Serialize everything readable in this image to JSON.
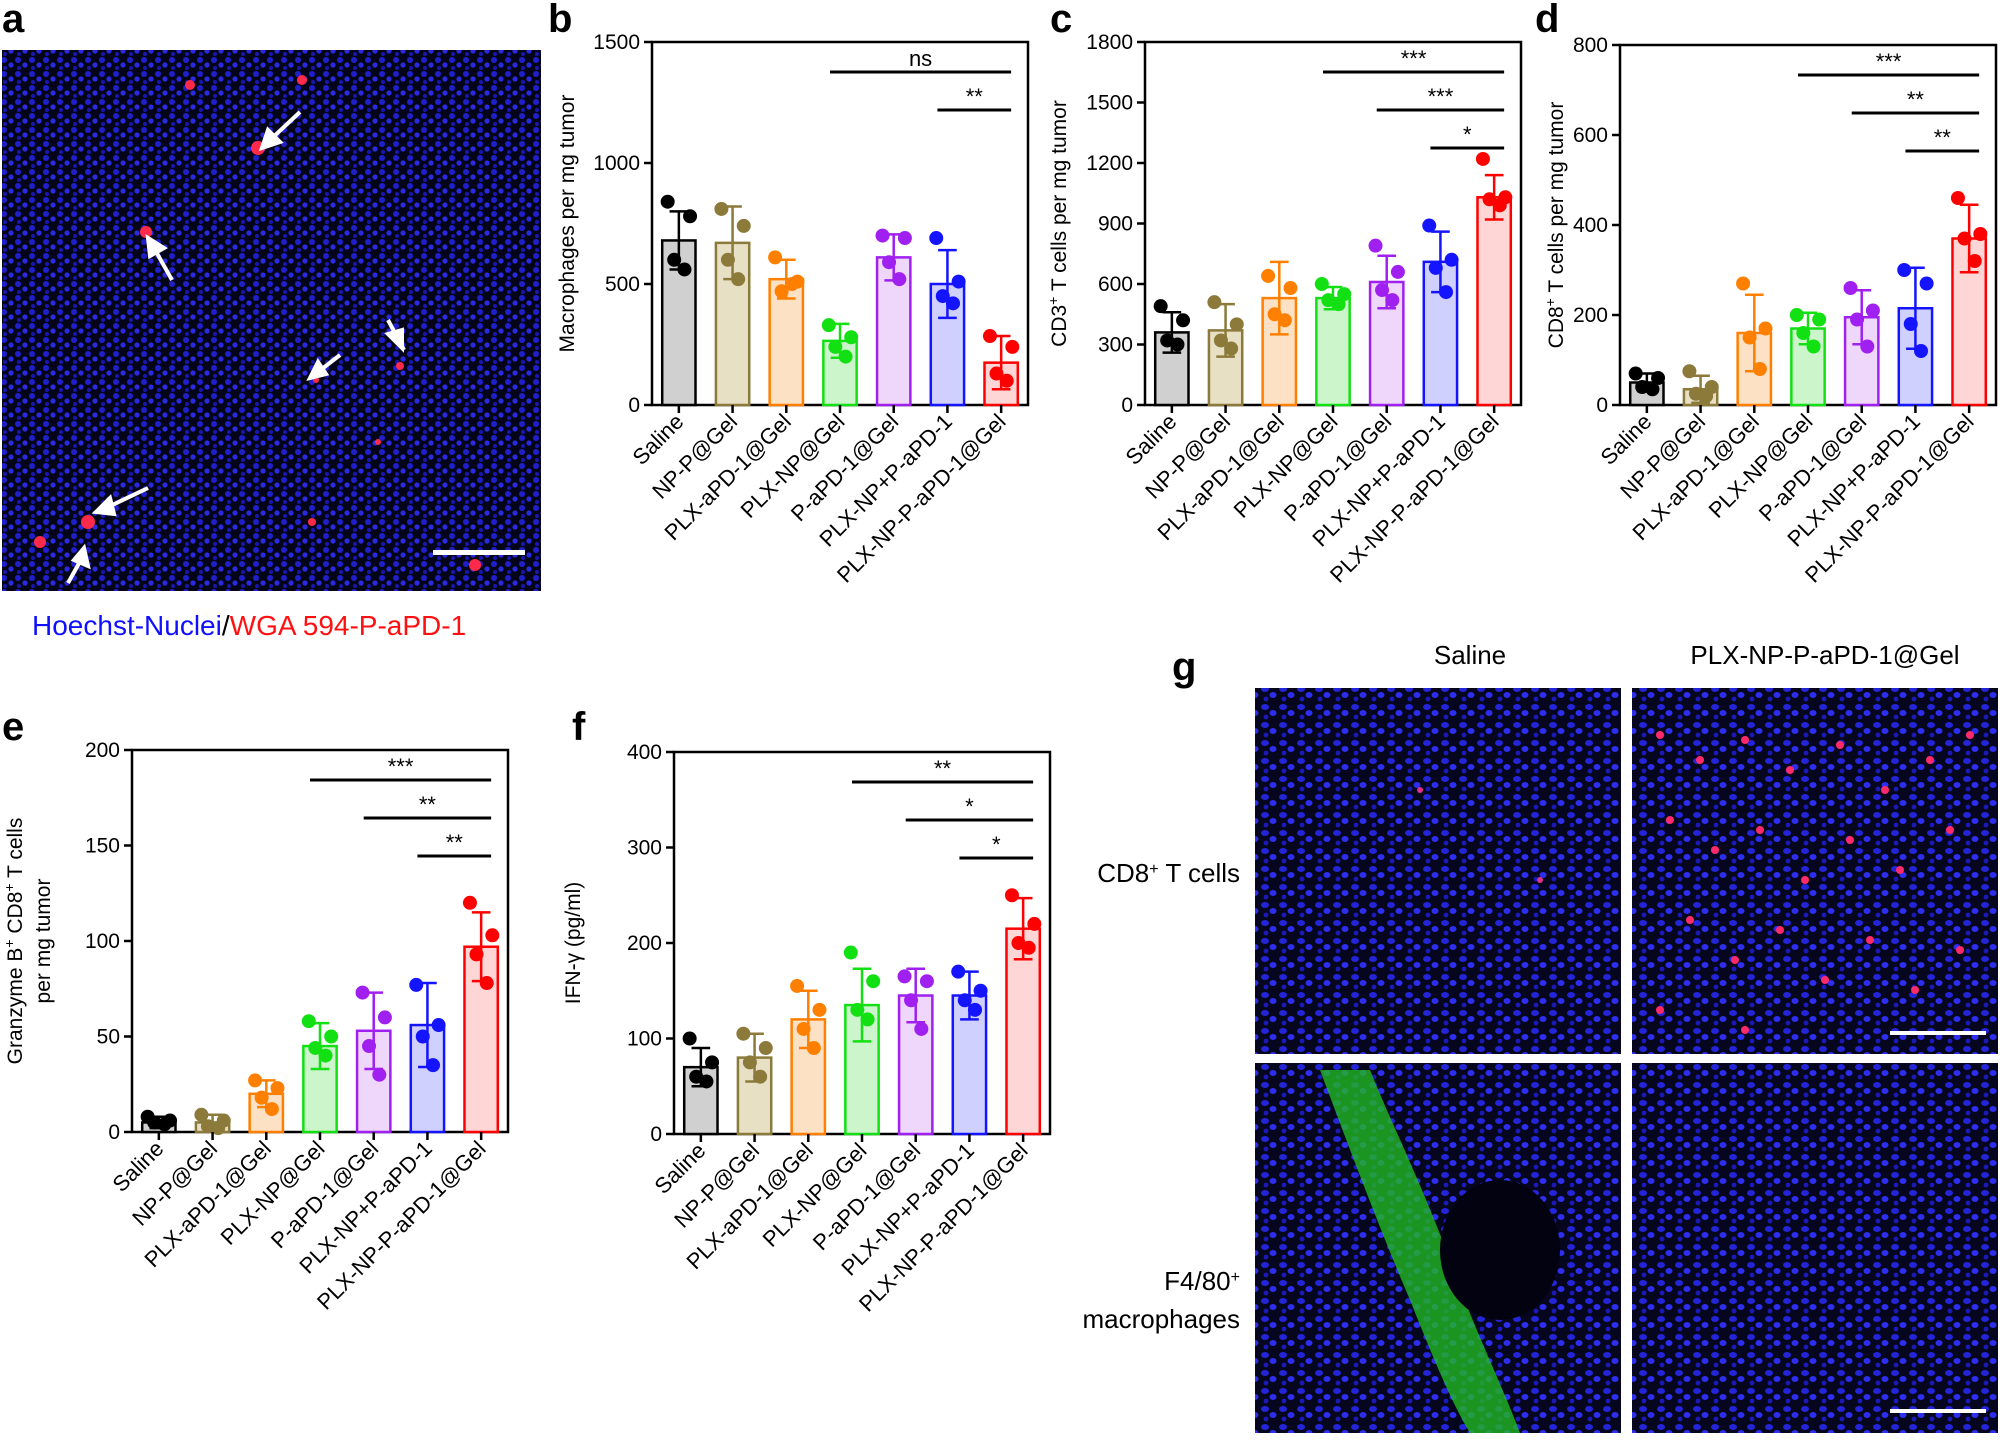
{
  "panel_a": {
    "letter": "a",
    "caption_blue": "Hoechst-Nuclei",
    "caption_sep": "/",
    "caption_red": "WGA 594-P-aPD-1",
    "colors": {
      "blue": "#1010ff",
      "red": "#ff1010"
    }
  },
  "panel_g": {
    "letter": "g",
    "col_headers": [
      "Saline",
      "PLX-NP-P-aPD-1@Gel"
    ],
    "row_labels": [
      {
        "line1": "CD8",
        "sup": "+",
        "line1b": " T cells",
        "line2": ""
      },
      {
        "line1": "F4/80",
        "sup": "+",
        "line1b": "",
        "line2": "macrophages"
      }
    ]
  },
  "group_colors": [
    "#000000",
    "#8b7a3a",
    "#ff8000",
    "#13e013",
    "#a020f0",
    "#1414ff",
    "#ff0000"
  ],
  "group_fills": [
    "#d0d0d0",
    "#e8e0c4",
    "#fde1c4",
    "#ccf5cc",
    "#efd6fb",
    "#d0d0ff",
    "#ffd6d6"
  ],
  "chart_data": [
    {
      "letter": "b",
      "type": "bar",
      "categories": [
        "Saline",
        "NP-P@Gel",
        "PLX-aPD-1@Gel",
        "PLX-NP@Gel",
        "P-aPD-1@Gel",
        "PLX-NP+P-aPD-1",
        "PLX-NP-P-aPD-1@Gel"
      ],
      "values": [
        680,
        670,
        520,
        265,
        610,
        500,
        175
      ],
      "errors": [
        120,
        150,
        80,
        70,
        95,
        140,
        110
      ],
      "points": [
        [
          840,
          780,
          600,
          560
        ],
        [
          810,
          740,
          600,
          520
        ],
        [
          610,
          510,
          470,
          500
        ],
        [
          330,
          280,
          240,
          200
        ],
        [
          700,
          690,
          590,
          520
        ],
        [
          690,
          510,
          450,
          420
        ],
        [
          285,
          240,
          130,
          100
        ]
      ],
      "ylabel": "Macrophages per mg tumor",
      "ylim": [
        0,
        1500
      ],
      "yticks": [
        0,
        500,
        1000,
        1500
      ],
      "significance": [
        {
          "from": 3,
          "to": 6,
          "label": "ns"
        },
        {
          "from": 5,
          "to": 6,
          "label": "**"
        }
      ]
    },
    {
      "letter": "c",
      "type": "bar",
      "categories": [
        "Saline",
        "NP-P@Gel",
        "PLX-aPD-1@Gel",
        "PLX-NP@Gel",
        "P-aPD-1@Gel",
        "PLX-NP+P-aPD-1",
        "PLX-NP-P-aPD-1@Gel"
      ],
      "ylabel_pre": "CD3",
      "ylabel_sup": "+",
      "ylabel_post": " T cells per mg tumor",
      "values": [
        360,
        370,
        530,
        530,
        610,
        710,
        1030
      ],
      "errors": [
        100,
        130,
        180,
        55,
        130,
        150,
        110
      ],
      "points": [
        [
          490,
          420,
          320,
          300
        ],
        [
          510,
          400,
          320,
          280
        ],
        [
          640,
          580,
          450,
          420
        ],
        [
          600,
          550,
          520,
          500
        ],
        [
          790,
          660,
          570,
          520
        ],
        [
          890,
          720,
          680,
          560
        ],
        [
          1220,
          1030,
          1020,
          990
        ]
      ],
      "ylim": [
        0,
        1800
      ],
      "yticks": [
        0,
        300,
        600,
        900,
        1200,
        1500,
        1800
      ],
      "significance": [
        {
          "from": 3,
          "to": 6,
          "label": "***"
        },
        {
          "from": 4,
          "to": 6,
          "label": "***"
        },
        {
          "from": 5,
          "to": 6,
          "label": "*"
        }
      ]
    },
    {
      "letter": "d",
      "type": "bar",
      "categories": [
        "Saline",
        "NP-P@Gel",
        "PLX-aPD-1@Gel",
        "PLX-NP@Gel",
        "P-aPD-1@Gel",
        "PLX-NP+P-aPD-1",
        "PLX-NP-P-aPD-1@Gel"
      ],
      "ylabel_pre": "CD8",
      "ylabel_sup": "+",
      "ylabel_post": " T cells per mg tumor",
      "values": [
        50,
        35,
        160,
        170,
        195,
        215,
        370
      ],
      "errors": [
        20,
        30,
        85,
        35,
        60,
        90,
        75
      ],
      "points": [
        [
          70,
          60,
          40,
          35
        ],
        [
          75,
          40,
          25,
          20
        ],
        [
          270,
          170,
          150,
          80
        ],
        [
          200,
          190,
          160,
          130
        ],
        [
          260,
          210,
          190,
          130
        ],
        [
          300,
          270,
          180,
          120
        ],
        [
          460,
          380,
          370,
          320
        ]
      ],
      "ylim": [
        0,
        800
      ],
      "yticks": [
        0,
        200,
        400,
        600,
        800
      ],
      "significance": [
        {
          "from": 3,
          "to": 6,
          "label": "***"
        },
        {
          "from": 4,
          "to": 6,
          "label": "**"
        },
        {
          "from": 5,
          "to": 6,
          "label": "**"
        }
      ]
    },
    {
      "letter": "e",
      "type": "bar",
      "categories": [
        "Saline",
        "NP-P@Gel",
        "PLX-aPD-1@Gel",
        "PLX-NP@Gel",
        "P-aPD-1@Gel",
        "PLX-NP+P-aPD-1",
        "PLX-NP-P-aPD-1@Gel"
      ],
      "ylabel_line1_pre": "Granzyme B",
      "ylabel_line1_sup1": "+",
      "ylabel_line1_mid": " CD8",
      "ylabel_line1_sup2": "+",
      "ylabel_line1_post": " T cells",
      "ylabel_line2": "per mg tumor",
      "values": [
        5,
        5,
        20,
        45,
        53,
        56,
        97
      ],
      "errors": [
        3,
        4,
        7,
        12,
        20,
        22,
        18
      ],
      "points": [
        [
          8,
          6,
          5,
          4
        ],
        [
          9,
          6,
          3,
          2
        ],
        [
          27,
          23,
          18,
          12
        ],
        [
          58,
          50,
          44,
          40
        ],
        [
          73,
          60,
          45,
          30
        ],
        [
          77,
          56,
          50,
          35
        ],
        [
          120,
          103,
          93,
          78
        ]
      ],
      "ylim": [
        0,
        200
      ],
      "yticks": [
        0,
        50,
        100,
        150,
        200
      ],
      "significance": [
        {
          "from": 3,
          "to": 6,
          "label": "***"
        },
        {
          "from": 4,
          "to": 6,
          "label": "**"
        },
        {
          "from": 5,
          "to": 6,
          "label": "**"
        }
      ]
    },
    {
      "letter": "f",
      "type": "bar",
      "categories": [
        "Saline",
        "NP-P@Gel",
        "PLX-aPD-1@Gel",
        "PLX-NP@Gel",
        "P-aPD-1@Gel",
        "PLX-NP+P-aPD-1",
        "PLX-NP-P-aPD-1@Gel"
      ],
      "ylabel": "IFN-γ (pg/ml)",
      "values": [
        70,
        80,
        120,
        135,
        145,
        145,
        215
      ],
      "errors": [
        20,
        25,
        30,
        38,
        28,
        25,
        32
      ],
      "points": [
        [
          100,
          75,
          60,
          55
        ],
        [
          105,
          90,
          75,
          60
        ],
        [
          155,
          130,
          110,
          90
        ],
        [
          190,
          160,
          130,
          120
        ],
        [
          165,
          160,
          140,
          110
        ],
        [
          170,
          150,
          140,
          130
        ],
        [
          250,
          220,
          200,
          195
        ]
      ],
      "ylim": [
        0,
        400
      ],
      "yticks": [
        0,
        100,
        200,
        300,
        400
      ],
      "significance": [
        {
          "from": 3,
          "to": 6,
          "label": "**"
        },
        {
          "from": 4,
          "to": 6,
          "label": "*"
        },
        {
          "from": 5,
          "to": 6,
          "label": "*"
        }
      ]
    }
  ]
}
